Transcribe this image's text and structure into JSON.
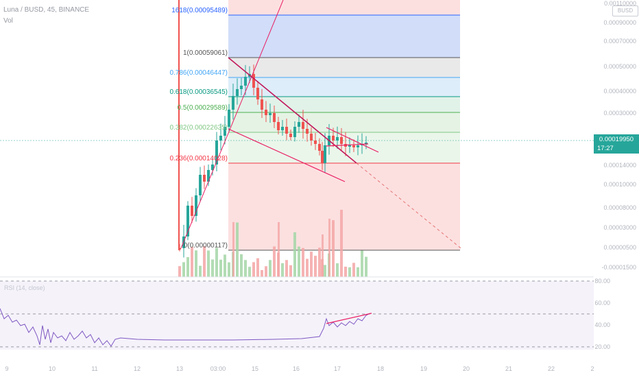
{
  "header": {
    "symbol_line": "Luna / BUSD, 45, BINANCE",
    "volume_label": "Vol"
  },
  "currency_badge": "BUSD",
  "price_axis": {
    "top_value": "0.00110000",
    "labels": [
      "0.00090000",
      "0.00070000",
      "0.00050000",
      "0.00040000",
      "0.00030000",
      "0.00014000",
      "0.00010000",
      "0.00008000",
      "0.00003000",
      "0.00000500",
      "-0.00001500"
    ]
  },
  "current_price": {
    "value": "0.00019950",
    "countdown": "17:27",
    "color": "#26a69a"
  },
  "fib_levels": [
    {
      "label": "1618(0.00095489)",
      "color": "#2962ff"
    },
    {
      "label": "1(0.00059061)",
      "color": "#555555"
    },
    {
      "label": "0.786(0.00046447)",
      "color": "#42a5f5"
    },
    {
      "label": "0.618(0.00036545)",
      "color": "#089981"
    },
    {
      "label": "0.5(0.00029589)",
      "color": "#4caf50"
    },
    {
      "label": "0.382(0.00022635)",
      "color": "#81c784"
    },
    {
      "label": "0.236(0.00014028)",
      "color": "#f23645"
    },
    {
      "label": "0(0.00000117)",
      "color": "#555555"
    }
  ],
  "rsi": {
    "label": "RSI (14, close)",
    "levels": [
      "80.00",
      "60.00",
      "40.00",
      "20.00"
    ]
  },
  "time_axis": [
    "9",
    "10",
    "11",
    "12",
    "13",
    "03:00",
    "15",
    "16",
    "17",
    "18",
    "19",
    "20",
    "21",
    "22",
    "2"
  ],
  "colors": {
    "up": "#26a69a",
    "down": "#ef5350",
    "trendline": "#e91e63",
    "rsi_line": "#7e57c2"
  }
}
